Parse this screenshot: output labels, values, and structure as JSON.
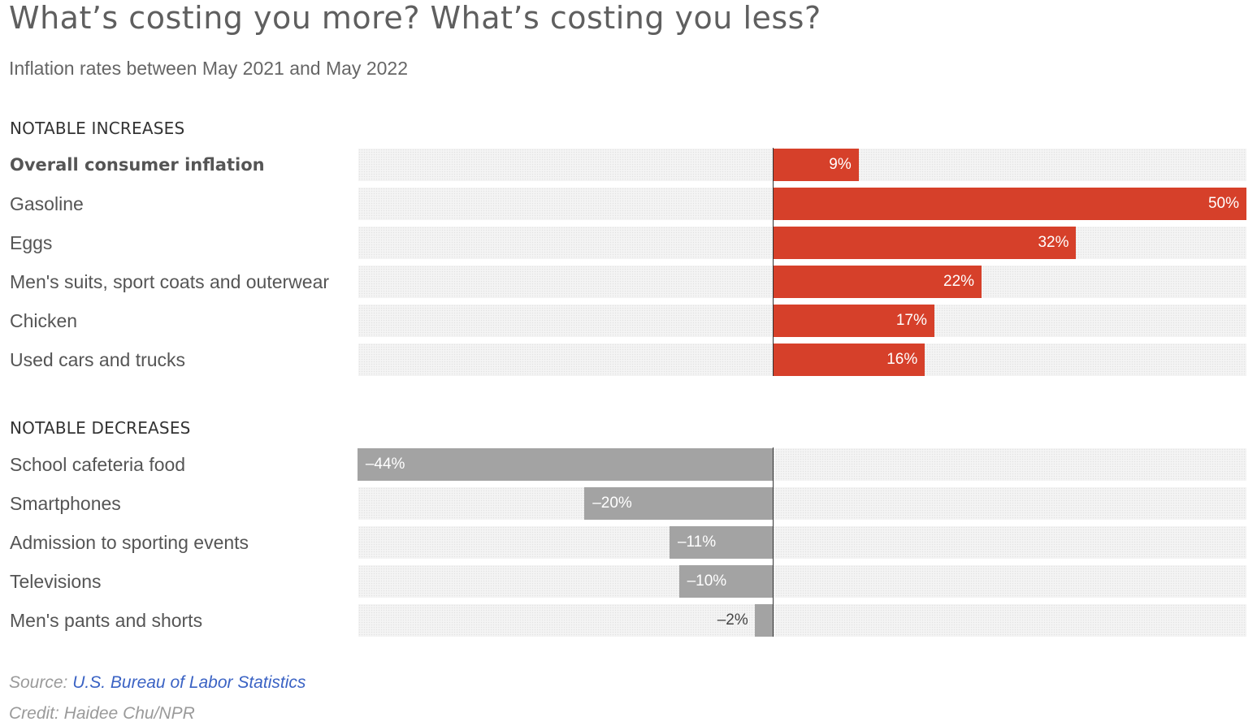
{
  "title": "What’s costing you more? What’s costing you less?",
  "subtitle": "Inflation rates between May 2021 and May 2022",
  "source_prefix": "Source: ",
  "source_link": "U.S. Bureau of Labor Statistics",
  "credit": "Credit: Haidee Chu/NPR",
  "colors": {
    "increase": "#d6402a",
    "decrease": "#a3a3a3",
    "track": "#f4f4f4",
    "axis": "#333333",
    "link": "#3b63c4"
  },
  "chart_data": {
    "type": "bar",
    "orientation": "horizontal",
    "unit": "%",
    "xlim": [
      -44,
      50
    ],
    "grid": false,
    "sections": [
      {
        "name": "NOTABLE INCREASES",
        "rows": [
          {
            "label": "Overall consumer inflation",
            "value": 9,
            "display": "9%",
            "emphasis": true
          },
          {
            "label": "Gasoline",
            "value": 50,
            "display": "50%"
          },
          {
            "label": "Eggs",
            "value": 32,
            "display": "32%"
          },
          {
            "label": "Men's suits, sport coats and outerwear",
            "value": 22,
            "display": "22%"
          },
          {
            "label": "Chicken",
            "value": 17,
            "display": "17%"
          },
          {
            "label": "Used cars and trucks",
            "value": 16,
            "display": "16%"
          }
        ]
      },
      {
        "name": "NOTABLE DECREASES",
        "rows": [
          {
            "label": "School cafeteria food",
            "value": -44,
            "display": "–44%"
          },
          {
            "label": "Smartphones",
            "value": -20,
            "display": "–20%"
          },
          {
            "label": "Admission to sporting events",
            "value": -11,
            "display": "–11%"
          },
          {
            "label": "Televisions",
            "value": -10,
            "display": "–10%"
          },
          {
            "label": "Men's pants and shorts",
            "value": -2,
            "display": "–2%"
          }
        ]
      }
    ]
  }
}
